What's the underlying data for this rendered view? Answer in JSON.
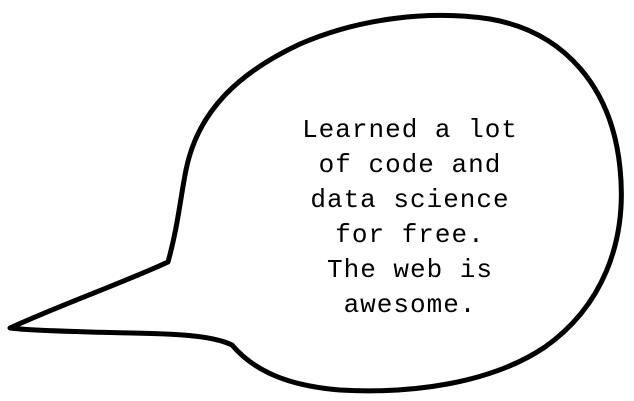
{
  "speech_bubble": {
    "lines": [
      "Learned a lot",
      "of code and",
      "data science",
      "for free.",
      "The web is",
      "awesome."
    ]
  },
  "colors": {
    "background": "#ffffff",
    "outline": "#000000",
    "text": "#000000"
  }
}
